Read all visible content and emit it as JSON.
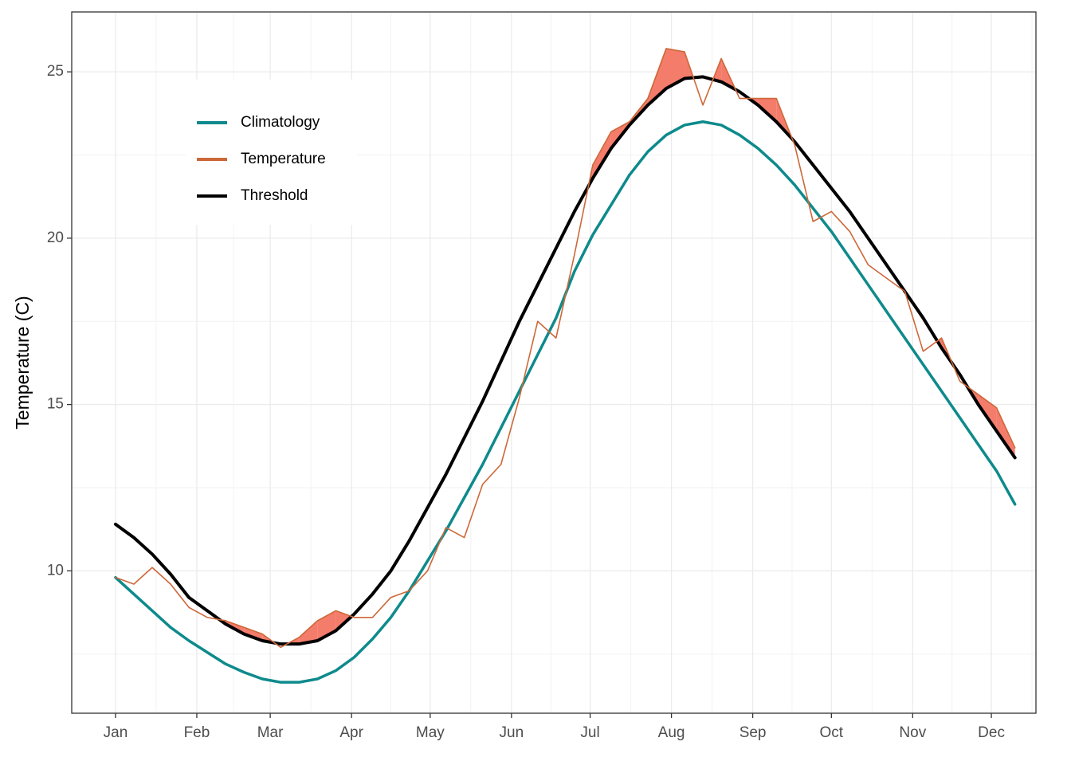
{
  "chart_data": {
    "type": "line",
    "y_label": "Temperature (C)",
    "x": [
      1,
      8,
      15,
      22,
      29,
      36,
      43,
      50,
      57,
      64,
      71,
      78,
      85,
      92,
      99,
      106,
      113,
      120,
      127,
      134,
      141,
      148,
      155,
      162,
      169,
      176,
      183,
      190,
      197,
      204,
      211,
      218,
      225,
      232,
      239,
      246,
      253,
      260,
      267,
      274,
      281,
      288,
      295,
      302,
      309,
      316,
      323,
      330,
      337,
      344
    ],
    "xlim": [
      -15.7,
      352
    ],
    "xticks": [
      {
        "value": 1,
        "label": "Jan"
      },
      {
        "value": 32,
        "label": "Feb"
      },
      {
        "value": 60,
        "label": "Mar"
      },
      {
        "value": 91,
        "label": "Apr"
      },
      {
        "value": 121,
        "label": "May"
      },
      {
        "value": 152,
        "label": "Jun"
      },
      {
        "value": 182,
        "label": "Jul"
      },
      {
        "value": 213,
        "label": "Aug"
      },
      {
        "value": 244,
        "label": "Sep"
      },
      {
        "value": 274,
        "label": "Oct"
      },
      {
        "value": 305,
        "label": "Nov"
      },
      {
        "value": 335,
        "label": "Dec"
      }
    ],
    "ylim": [
      5.72,
      26.8
    ],
    "yticks": [
      10,
      15,
      20,
      25
    ],
    "grid": true,
    "legend": "top-left",
    "exceedance_color": "#f47c6b",
    "series": [
      {
        "name": "Climatology",
        "color": "#0e8a8c",
        "values": [
          9.8,
          9.3,
          8.8,
          8.3,
          7.9,
          7.55,
          7.2,
          6.95,
          6.75,
          6.65,
          6.65,
          6.75,
          7.0,
          7.4,
          7.95,
          8.6,
          9.4,
          10.3,
          11.2,
          12.2,
          13.2,
          14.3,
          15.4,
          16.5,
          17.6,
          19.0,
          20.1,
          21.0,
          21.9,
          22.6,
          23.1,
          23.4,
          23.5,
          23.4,
          23.1,
          22.7,
          22.2,
          21.6,
          20.9,
          20.2,
          19.4,
          18.6,
          17.8,
          17.0,
          16.2,
          15.4,
          14.6,
          13.8,
          13.0,
          12.0
        ]
      },
      {
        "name": "Temperature",
        "color": "#cd6839",
        "values": [
          9.8,
          9.6,
          10.1,
          9.6,
          8.9,
          8.6,
          8.5,
          8.3,
          8.1,
          7.7,
          8.0,
          8.5,
          8.8,
          8.6,
          8.6,
          9.2,
          9.4,
          10.0,
          11.3,
          11.0,
          12.6,
          13.2,
          15.2,
          17.5,
          17.0,
          19.5,
          22.2,
          23.2,
          23.5,
          24.2,
          25.7,
          25.6,
          24.0,
          25.4,
          24.2,
          24.2,
          24.2,
          22.8,
          20.5,
          20.8,
          20.2,
          19.2,
          18.8,
          18.4,
          16.6,
          17.0,
          15.7,
          15.3,
          14.9,
          13.7
        ]
      },
      {
        "name": "Threshold",
        "color": "#000000",
        "values": [
          11.4,
          11.0,
          10.5,
          9.9,
          9.2,
          8.8,
          8.4,
          8.1,
          7.9,
          7.8,
          7.8,
          7.9,
          8.2,
          8.7,
          9.3,
          10.0,
          10.9,
          11.9,
          12.9,
          14.0,
          15.1,
          16.3,
          17.5,
          18.6,
          19.7,
          20.8,
          21.8,
          22.7,
          23.4,
          24.0,
          24.5,
          24.8,
          24.85,
          24.7,
          24.4,
          24.0,
          23.5,
          22.9,
          22.2,
          21.5,
          20.8,
          20.0,
          19.2,
          18.4,
          17.6,
          16.7,
          15.9,
          15.0,
          14.2,
          13.4
        ]
      }
    ]
  }
}
